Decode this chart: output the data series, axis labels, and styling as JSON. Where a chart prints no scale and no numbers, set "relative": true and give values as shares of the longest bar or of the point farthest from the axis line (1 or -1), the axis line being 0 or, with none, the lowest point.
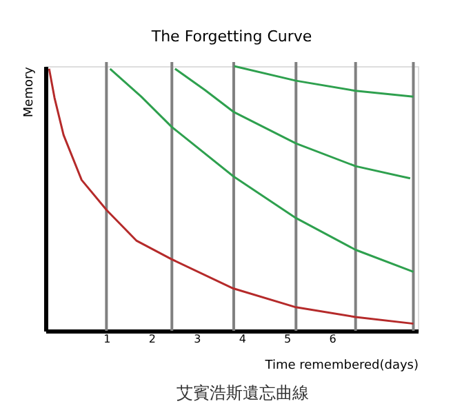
{
  "chart_data": {
    "type": "line",
    "title": "The Forgetting Curve",
    "xlabel": "Time remembered(days)",
    "ylabel": "Memory",
    "annotations": [
      "艾賓浩斯遺忘曲線"
    ],
    "relative": true,
    "xlim": [
      -0.35,
      7.9
    ],
    "xticks": [
      1,
      2,
      3,
      4,
      5,
      6
    ],
    "grid": false,
    "marker": "none",
    "line_style": "solid",
    "ref_lines": [
      {
        "axis": "x",
        "value": 1.0,
        "color": "#808080"
      },
      {
        "axis": "x",
        "value": 2.45,
        "color": "#808080"
      },
      {
        "axis": "x",
        "value": 3.82,
        "color": "#808080"
      },
      {
        "axis": "x",
        "value": 5.2,
        "color": "#808080"
      },
      {
        "axis": "x",
        "value": 6.52,
        "color": "#808080"
      },
      {
        "axis": "x",
        "value": 7.8,
        "color": "#808080"
      }
    ],
    "series": [
      {
        "color": "#b52a2a",
        "x": [
          -0.27,
          -0.15,
          0.05,
          0.45,
          1.01,
          1.67,
          2.45,
          3.81,
          5.2,
          6.52,
          7.8
        ],
        "values": [
          0.99,
          0.88,
          0.74,
          0.57,
          0.455,
          0.34,
          0.27,
          0.16,
          0.089,
          0.052,
          0.027
        ]
      },
      {
        "color": "#2ea04e",
        "x": [
          1.08,
          1.77,
          2.45,
          3.81,
          5.2,
          6.52,
          7.8
        ],
        "values": [
          0.99,
          0.885,
          0.77,
          0.584,
          0.426,
          0.306,
          0.223
        ]
      },
      {
        "color": "#2ea04e",
        "x": [
          2.52,
          3.18,
          3.81,
          5.2,
          6.52,
          7.73
        ],
        "values": [
          0.99,
          0.91,
          0.828,
          0.708,
          0.622,
          0.576
        ]
      },
      {
        "color": "#2ea04e",
        "x": [
          3.83,
          5.2,
          6.52,
          7.8
        ],
        "values": [
          1.0,
          0.945,
          0.907,
          0.885
        ]
      }
    ]
  }
}
